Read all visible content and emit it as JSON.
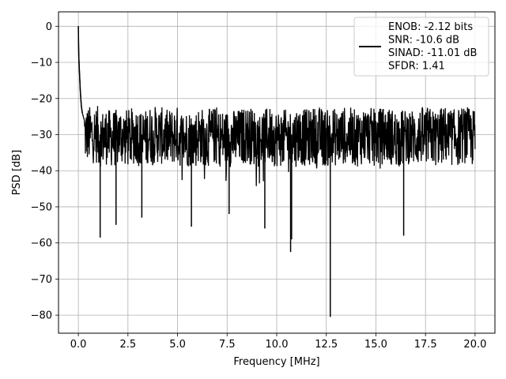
{
  "chart_data": {
    "type": "line",
    "title": "",
    "xlabel": "Frequency [MHz]",
    "ylabel": "PSD [dB]",
    "xlim": [
      -1.0,
      21.0
    ],
    "ylim": [
      -85,
      4
    ],
    "grid": true,
    "line_color": "#000000",
    "x_ticks": [
      {
        "value": 0.0,
        "label": "0.0"
      },
      {
        "value": 2.5,
        "label": "2.5"
      },
      {
        "value": 5.0,
        "label": "5.0"
      },
      {
        "value": 7.5,
        "label": "7.5"
      },
      {
        "value": 10.0,
        "label": "10.0"
      },
      {
        "value": 12.5,
        "label": "12.5"
      },
      {
        "value": 15.0,
        "label": "15.0"
      },
      {
        "value": 17.5,
        "label": "17.5"
      },
      {
        "value": 20.0,
        "label": "20.0"
      }
    ],
    "y_ticks": [
      {
        "value": 0,
        "label": "0"
      },
      {
        "value": -10,
        "label": "−10"
      },
      {
        "value": -20,
        "label": "−20"
      },
      {
        "value": -30,
        "label": "−30"
      },
      {
        "value": -40,
        "label": "−40"
      },
      {
        "value": -50,
        "label": "−50"
      },
      {
        "value": -60,
        "label": "−60"
      },
      {
        "value": -70,
        "label": "−70"
      },
      {
        "value": -80,
        "label": "−80"
      }
    ],
    "legend": {
      "position": "top-right",
      "entries": [
        "ENOB: -2.12 bits",
        "SNR: -10.6 dB",
        "SINAD: -11.01 dB",
        "SFDR: 1.41"
      ]
    },
    "series": [
      {
        "x": [
          0.0,
          0.02,
          0.05,
          0.1,
          0.15,
          0.2,
          0.3,
          0.5,
          0.7,
          1.0,
          1.1,
          1.3,
          1.5,
          1.9,
          2.0,
          2.5,
          3.0,
          3.2,
          3.5,
          4.0,
          4.5,
          5.0,
          5.7,
          6.0,
          6.5,
          7.0,
          7.6,
          8.0,
          8.5,
          9.0,
          9.4,
          9.5,
          10.0,
          10.1,
          10.5,
          10.7,
          10.75,
          11.0,
          11.5,
          12.0,
          12.5,
          12.7,
          12.8,
          13.0,
          13.5,
          14.0,
          14.5,
          15.0,
          15.5,
          16.0,
          16.4,
          16.5,
          17.0,
          17.5,
          18.0,
          18.5,
          19.0,
          19.5,
          19.9,
          20.0
        ],
        "y": [
          0.0,
          -8.0,
          -12.0,
          -18.0,
          -22.0,
          -24.0,
          -26.0,
          -28.0,
          -29.0,
          -30.0,
          -58.5,
          -31.0,
          -30.0,
          -55.0,
          -30.0,
          -31.0,
          -30.0,
          -53.0,
          -29.0,
          -30.0,
          -31.0,
          -30.0,
          -55.5,
          -30.0,
          -31.0,
          -30.0,
          -52.0,
          -31.0,
          -30.0,
          -31.0,
          -56.0,
          -30.0,
          -31.0,
          -45.0,
          -30.0,
          -62.5,
          -59.0,
          -30.0,
          -31.0,
          -30.0,
          -31.0,
          -80.5,
          -30.0,
          -31.0,
          -30.0,
          -31.0,
          -30.0,
          -31.0,
          -30.0,
          -31.0,
          -58.0,
          -30.0,
          -31.0,
          -30.0,
          -31.0,
          -30.0,
          -31.0,
          -30.0,
          -31.0,
          -30.0
        ]
      }
    ]
  }
}
